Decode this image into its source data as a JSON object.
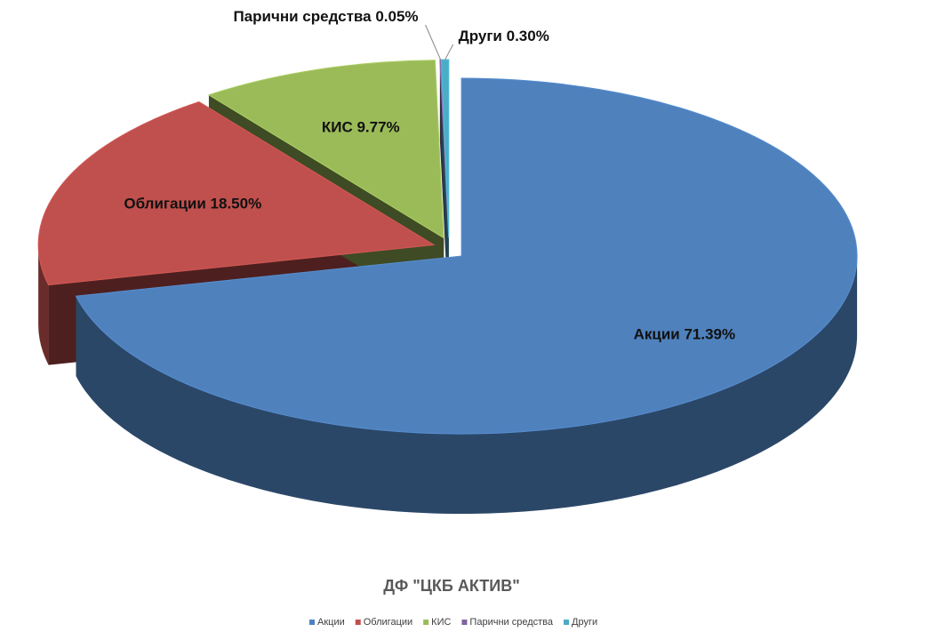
{
  "chart_data": {
    "type": "pie",
    "title": "ДФ \"ЦКБ АКТИВ\"",
    "categories": [
      "Акции",
      "Облигации",
      "КИС",
      "Парични средства",
      "Други"
    ],
    "values": [
      71.39,
      18.5,
      9.77,
      0.05,
      0.3
    ],
    "value_labels": [
      "71.39%",
      "18.50%",
      "9.77%",
      "0.05%",
      "0.30%"
    ],
    "colors": [
      "#4f81bd",
      "#c0504d",
      "#9bbb59",
      "#8064a2",
      "#4bacc6"
    ],
    "legend": "bottom"
  }
}
